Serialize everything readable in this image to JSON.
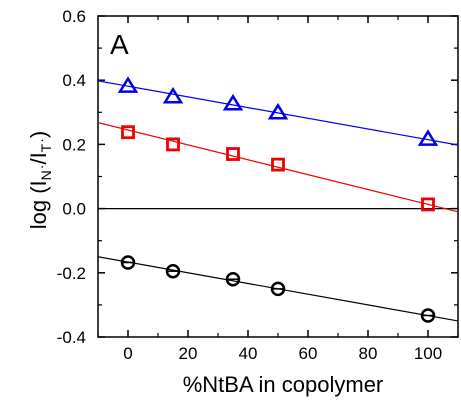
{
  "chart_data": {
    "type": "scatter",
    "panel_label": "A",
    "xlabel": "%NtBA in copolymer",
    "ylabel": {
      "prefix": "log (I",
      "sub1": "N",
      "mid": "/I",
      "sub2": "T",
      "suffix": ")"
    },
    "xlim": [
      -10,
      110
    ],
    "ylim": [
      -0.4,
      0.6
    ],
    "x_ticks": [
      0,
      20,
      40,
      60,
      80,
      100
    ],
    "x_tick_labels": [
      "0",
      "20",
      "40",
      "60",
      "80",
      "100"
    ],
    "y_ticks": [
      -0.4,
      -0.2,
      0.0,
      0.2,
      0.4,
      0.6
    ],
    "y_tick_labels": [
      "-0.4",
      "-0.2",
      "0.0",
      "0.2",
      "0.4",
      "0.6"
    ],
    "x_minor_ticks": [
      -10,
      10,
      30,
      50,
      70,
      90,
      110
    ],
    "y_minor_ticks": [
      -0.3,
      -0.1,
      0.1,
      0.3,
      0.5
    ],
    "zero_line": true,
    "grid": false,
    "legend": "none",
    "series": [
      {
        "marker": "triangle",
        "color": "#0000ee",
        "x": [
          0,
          15,
          35,
          50,
          100
        ],
        "y": [
          0.383,
          0.35,
          0.328,
          0.3,
          0.218
        ],
        "fit": {
          "x": [
            -10,
            110
          ],
          "y": [
            0.398,
            0.198
          ]
        }
      },
      {
        "marker": "square",
        "color": "#ee0000",
        "x": [
          0,
          15,
          35,
          50,
          100
        ],
        "y": [
          0.238,
          0.2,
          0.17,
          0.137,
          0.013
        ],
        "fit": {
          "x": [
            -10,
            110
          ],
          "y": [
            0.268,
            -0.01
          ]
        }
      },
      {
        "marker": "circle",
        "color": "#000000",
        "x": [
          0,
          15,
          35,
          50,
          100
        ],
        "y": [
          -0.168,
          -0.195,
          -0.22,
          -0.25,
          -0.333
        ],
        "fit": {
          "x": [
            -10,
            110
          ],
          "y": [
            -0.15,
            -0.35
          ]
        }
      }
    ]
  }
}
